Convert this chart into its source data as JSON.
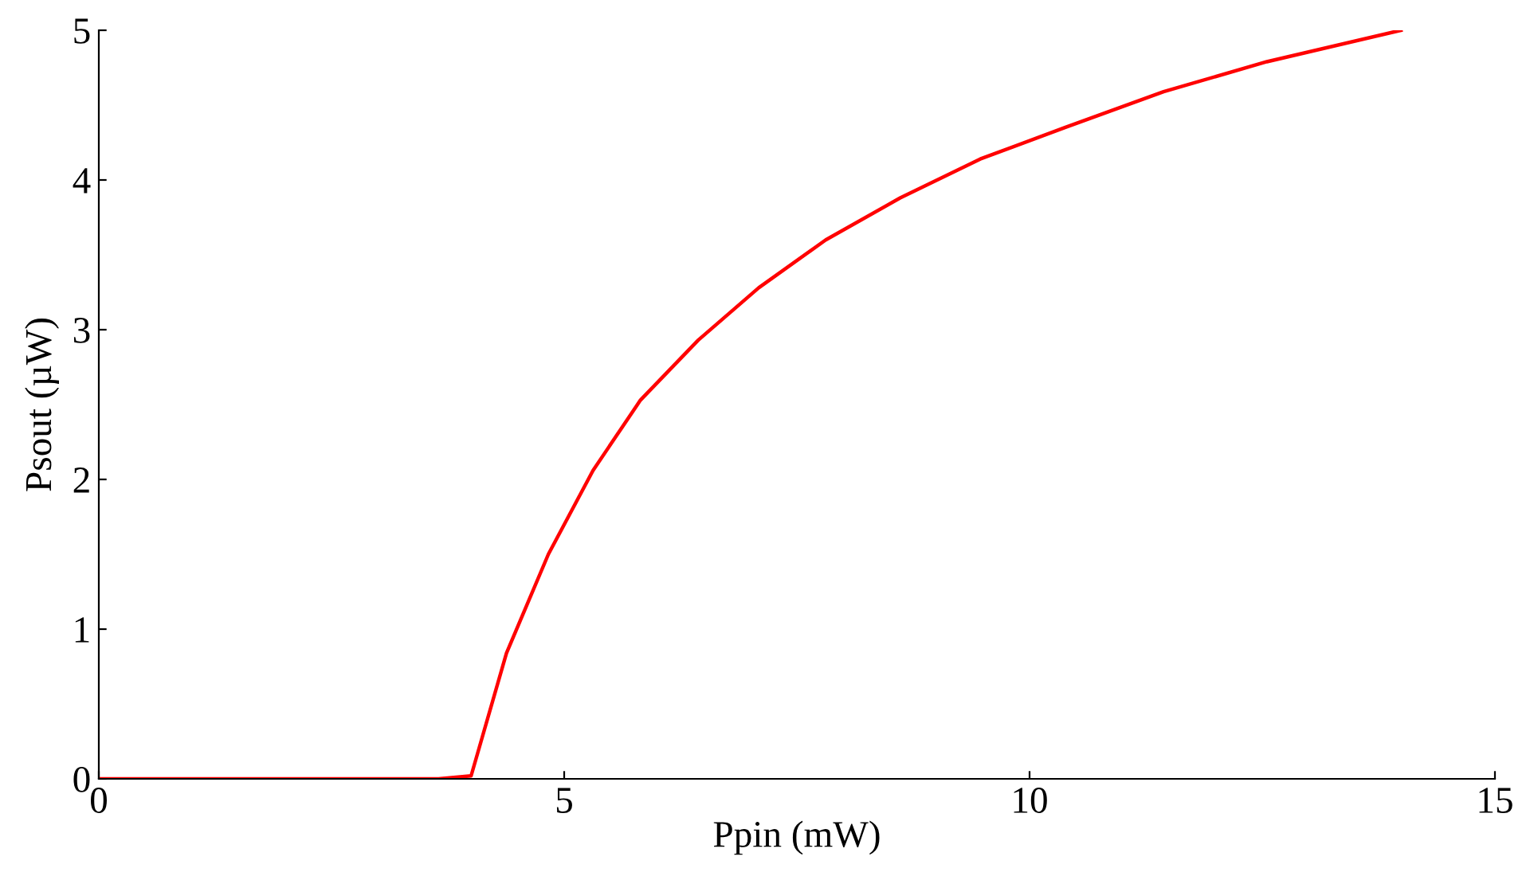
{
  "chart_data": {
    "type": "line",
    "xlabel": "Ppin (mW)",
    "ylabel": "Psout (µW)",
    "series": [
      {
        "color": "#ff0000",
        "x": [
          0,
          3.65,
          4.0,
          4.38,
          4.83,
          5.31,
          5.82,
          6.44,
          7.09,
          7.81,
          8.61,
          9.47,
          10.38,
          11.44,
          12.55,
          13.99
        ],
        "values": [
          0,
          0,
          0.02,
          0.84,
          1.5,
          2.06,
          2.53,
          2.93,
          3.28,
          3.6,
          3.88,
          4.14,
          4.35,
          4.59,
          4.79,
          5.0
        ]
      }
    ],
    "xlim": [
      0,
      15
    ],
    "ylim": [
      0,
      5
    ],
    "xticks": [
      0,
      5,
      10,
      15
    ],
    "yticks": [
      0,
      1,
      2,
      3,
      4,
      5
    ],
    "grid": false,
    "legend": false,
    "marker": "none",
    "line_style": "solid"
  }
}
